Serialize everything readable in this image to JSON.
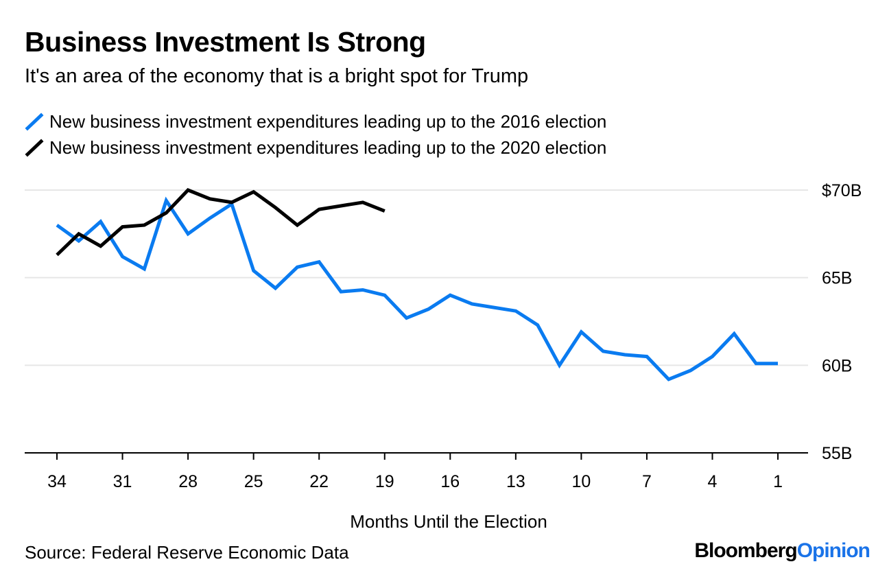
{
  "title": "Business Investment Is Strong",
  "subtitle": "It's an area of the economy that is a bright spot for Trump",
  "source": "Source: Federal Reserve Economic Data",
  "brand": {
    "part1": "Bloomberg",
    "part2": "Opinion"
  },
  "colors": {
    "series2016": "#0a7bf0",
    "series2020": "#000000",
    "grid": "#e6e6e6",
    "brand_accent": "#1a73e8"
  },
  "chart_data": {
    "type": "line",
    "title": "Business Investment Is Strong",
    "subtitle": "It's an area of the economy that is a bright spot for Trump",
    "xlabel": "Months Until the Election",
    "ylabel": "",
    "x_reversed": true,
    "xlim": [
      35.5,
      0
    ],
    "ylim": [
      55,
      70
    ],
    "x_ticks": [
      34,
      31,
      28,
      25,
      22,
      19,
      16,
      13,
      10,
      7,
      4,
      1
    ],
    "y_ticks": [
      {
        "value": 70,
        "label": "$70B"
      },
      {
        "value": 65,
        "label": "65B"
      },
      {
        "value": 60,
        "label": "60B"
      },
      {
        "value": 55,
        "label": "55B"
      }
    ],
    "grid": true,
    "series": [
      {
        "name": "New business investment expenditures leading up to the 2016 election",
        "color": "#0a7bf0",
        "x": [
          34,
          33,
          32,
          31,
          30,
          29,
          28,
          27,
          26,
          25,
          24,
          23,
          22,
          21,
          20,
          19,
          18,
          17,
          16,
          15,
          14,
          13,
          12,
          11,
          10,
          9,
          8,
          7,
          6,
          5,
          4,
          3,
          2,
          1
        ],
        "values": [
          68.0,
          67.1,
          68.2,
          66.2,
          65.5,
          69.4,
          67.5,
          68.4,
          69.2,
          65.4,
          64.4,
          65.6,
          65.9,
          64.2,
          64.3,
          64.0,
          62.7,
          63.2,
          64.0,
          63.5,
          63.3,
          63.1,
          62.3,
          60.0,
          61.9,
          60.8,
          60.6,
          60.5,
          59.2,
          59.7,
          60.5,
          61.8,
          60.1,
          60.1
        ]
      },
      {
        "name": "New business investment expenditures leading up to the 2020 election",
        "color": "#000000",
        "x": [
          34,
          33,
          32,
          31,
          30,
          29,
          28,
          27,
          26,
          25,
          24,
          23,
          22,
          21,
          20,
          19
        ],
        "values": [
          66.3,
          67.5,
          66.8,
          67.9,
          68.0,
          68.7,
          70.0,
          69.5,
          69.3,
          69.9,
          69.0,
          68.0,
          68.9,
          69.1,
          69.3,
          68.8
        ]
      }
    ]
  }
}
